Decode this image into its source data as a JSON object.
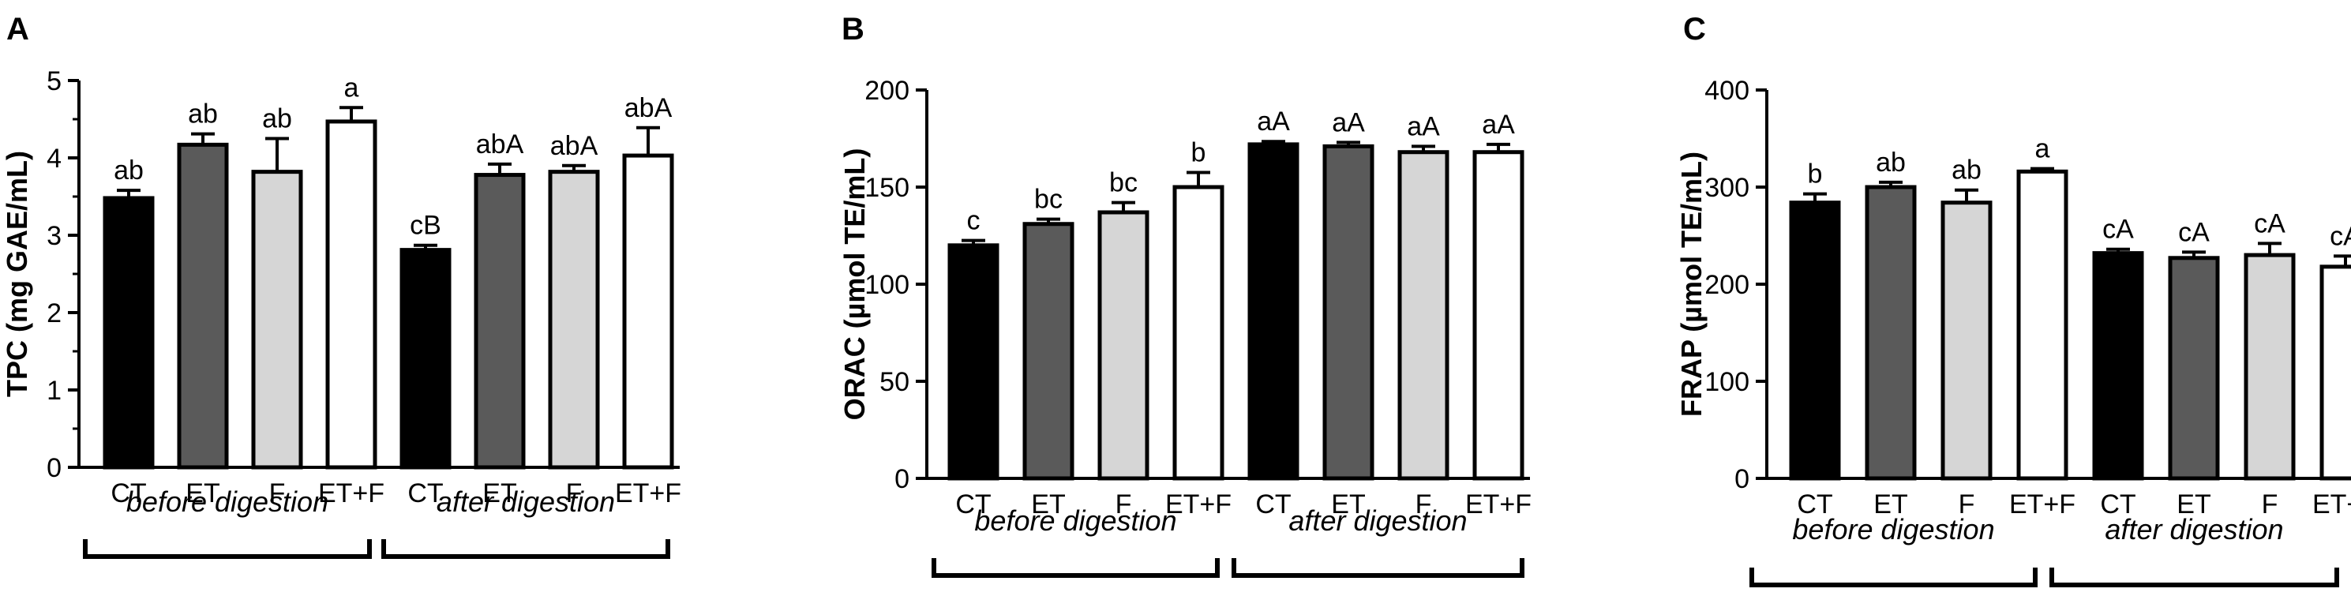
{
  "colors": {
    "CT": "#000000",
    "ET": "#5a5a5a",
    "F": "#d6d6d6",
    "ET+F": "#ffffff"
  },
  "chart_data": [
    {
      "type": "bar",
      "panel": "A",
      "ylabel": "TPC (mg GAE/mL)",
      "ylim": [
        0,
        5
      ],
      "yticks": [
        0,
        1,
        2,
        3,
        4,
        5
      ],
      "categories": [
        "CT",
        "ET",
        "F",
        "ET+F",
        "CT",
        "ET",
        "F",
        "ET+F"
      ],
      "groups": [
        "before digestion",
        "after digestion"
      ],
      "values": [
        3.48,
        4.17,
        3.82,
        4.47,
        2.81,
        3.78,
        3.82,
        4.03
      ],
      "errors": [
        0.1,
        0.14,
        0.43,
        0.18,
        0.06,
        0.14,
        0.08,
        0.36
      ],
      "labels": [
        "ab",
        "ab",
        "ab",
        "a",
        "cB",
        "abA",
        "abA",
        "abA"
      ]
    },
    {
      "type": "bar",
      "panel": "B",
      "ylabel": "ORAC (µmol TE/mL)",
      "ylim": [
        0,
        200
      ],
      "yticks": [
        0,
        50,
        100,
        150,
        200
      ],
      "categories": [
        "CT",
        "ET",
        "F",
        "ET+F",
        "CT",
        "ET",
        "F",
        "ET+F"
      ],
      "groups": [
        "before digestion",
        "after digestion"
      ],
      "values": [
        120,
        131,
        137,
        150,
        172,
        171,
        168,
        168
      ],
      "errors": [
        2.5,
        2.5,
        5,
        7.5,
        1.5,
        2,
        3,
        4
      ],
      "labels": [
        "c",
        "bc",
        "bc",
        "b",
        "aA",
        "aA",
        "aA",
        "aA"
      ]
    },
    {
      "type": "bar",
      "panel": "C",
      "ylabel": "FRAP  (µmol TE/mL)",
      "ylim": [
        0,
        400
      ],
      "yticks": [
        0,
        100,
        200,
        300,
        400
      ],
      "categories": [
        "CT",
        "ET",
        "F",
        "ET+F",
        "CT",
        "ET",
        "F",
        "ET+F"
      ],
      "groups": [
        "before digestion",
        "after digestion"
      ],
      "values": [
        284,
        300,
        284,
        316,
        232,
        227,
        230,
        218
      ],
      "errors": [
        9,
        5,
        13,
        3,
        4,
        6,
        12,
        11
      ],
      "labels": [
        "b",
        "ab",
        "ab",
        "a",
        "cA",
        "cA",
        "cA",
        "cA"
      ]
    }
  ]
}
